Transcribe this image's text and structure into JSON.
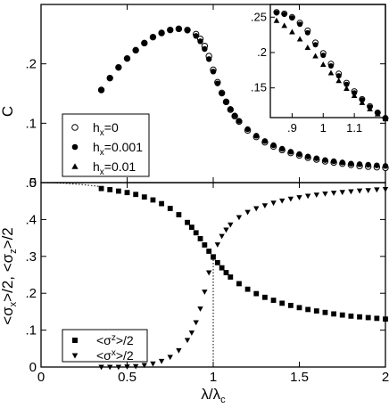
{
  "chart_data": [
    {
      "id": "top",
      "type": "scatter",
      "xlabel": "",
      "ylabel": "C",
      "xlim": [
        0,
        2
      ],
      "ylim": [
        0,
        0.3
      ],
      "xticks": [
        0,
        0.5,
        1,
        1.5,
        2
      ],
      "yticks": [
        0,
        0.1,
        0.2
      ],
      "ytick_labels": [
        "0",
        ".1",
        ".2"
      ],
      "legend": {
        "position": "lower-left",
        "entries": [
          {
            "series": 0,
            "label_main": "h",
            "label_sub": "x",
            "label_tail": "=0"
          },
          {
            "series": 1,
            "label_main": "h",
            "label_sub": "x",
            "label_tail": "=0.001"
          },
          {
            "series": 2,
            "label_main": "h",
            "label_sub": "x",
            "label_tail": "=0.01"
          }
        ]
      },
      "series": [
        {
          "marker": "open-circle",
          "points": [
            [
              0.35,
              0.156
            ],
            [
              0.4,
              0.176
            ],
            [
              0.45,
              0.194
            ],
            [
              0.5,
              0.209
            ],
            [
              0.55,
              0.223
            ],
            [
              0.6,
              0.235
            ],
            [
              0.65,
              0.245
            ],
            [
              0.7,
              0.252
            ],
            [
              0.75,
              0.257
            ],
            [
              0.8,
              0.259
            ],
            [
              0.85,
              0.257
            ],
            [
              0.9,
              0.25
            ],
            [
              0.925,
              0.242
            ],
            [
              0.95,
              0.23
            ],
            [
              0.975,
              0.213
            ],
            [
              1.0,
              0.19
            ],
            [
              1.025,
              0.169
            ],
            [
              1.05,
              0.151
            ],
            [
              1.075,
              0.136
            ],
            [
              1.1,
              0.123
            ],
            [
              1.125,
              0.112
            ],
            [
              1.15,
              0.103
            ],
            [
              1.2,
              0.088
            ],
            [
              1.25,
              0.077
            ],
            [
              1.3,
              0.068
            ],
            [
              1.35,
              0.061
            ],
            [
              1.4,
              0.055
            ],
            [
              1.45,
              0.05
            ],
            [
              1.5,
              0.046
            ],
            [
              1.55,
              0.042
            ],
            [
              1.6,
              0.039
            ],
            [
              1.65,
              0.036
            ],
            [
              1.7,
              0.034
            ],
            [
              1.75,
              0.032
            ],
            [
              1.8,
              0.03
            ],
            [
              1.85,
              0.028
            ],
            [
              1.9,
              0.027
            ],
            [
              1.95,
              0.026
            ],
            [
              2.0,
              0.025
            ]
          ]
        },
        {
          "marker": "filled-circle",
          "points": [
            [
              0.35,
              0.156
            ],
            [
              0.4,
              0.176
            ],
            [
              0.45,
              0.194
            ],
            [
              0.5,
              0.209
            ],
            [
              0.55,
              0.223
            ],
            [
              0.6,
              0.235
            ],
            [
              0.65,
              0.245
            ],
            [
              0.7,
              0.252
            ],
            [
              0.75,
              0.257
            ],
            [
              0.8,
              0.259
            ],
            [
              0.85,
              0.256
            ],
            [
              0.9,
              0.247
            ],
            [
              0.925,
              0.238
            ],
            [
              0.95,
              0.225
            ],
            [
              0.975,
              0.208
            ],
            [
              1.0,
              0.187
            ],
            [
              1.025,
              0.167
            ],
            [
              1.05,
              0.15
            ],
            [
              1.075,
              0.136
            ],
            [
              1.1,
              0.124
            ],
            [
              1.125,
              0.113
            ],
            [
              1.15,
              0.104
            ],
            [
              1.2,
              0.09
            ],
            [
              1.25,
              0.079
            ],
            [
              1.3,
              0.07
            ],
            [
              1.35,
              0.063
            ],
            [
              1.4,
              0.057
            ],
            [
              1.45,
              0.052
            ],
            [
              1.5,
              0.048
            ],
            [
              1.55,
              0.044
            ],
            [
              1.6,
              0.041
            ],
            [
              1.65,
              0.038
            ],
            [
              1.7,
              0.036
            ],
            [
              1.75,
              0.034
            ],
            [
              1.8,
              0.032
            ],
            [
              1.85,
              0.031
            ],
            [
              1.9,
              0.03
            ],
            [
              1.95,
              0.029
            ],
            [
              2.0,
              0.028
            ]
          ]
        },
        {
          "marker": "filled-triangle",
          "points": []
        }
      ],
      "inset": {
        "xlim": [
          0.83,
          1.2
        ],
        "ylim": [
          0.108,
          0.268
        ],
        "xticks": [
          0.9,
          1,
          1.1
        ],
        "xtick_labels": [
          ".9",
          "1",
          "1.1"
        ],
        "yticks": [
          0.15,
          0.2,
          0.25
        ],
        "ytick_labels": [
          ".15",
          ".2",
          ".25"
        ],
        "series": [
          {
            "marker": "open-circle",
            "points": [
              [
                0.85,
                0.257
              ],
              [
                0.875,
                0.255
              ],
              [
                0.9,
                0.25
              ],
              [
                0.925,
                0.242
              ],
              [
                0.95,
                0.231
              ],
              [
                0.975,
                0.214
              ],
              [
                1.0,
                0.199
              ],
              [
                1.025,
                0.184
              ],
              [
                1.05,
                0.17
              ],
              [
                1.075,
                0.157
              ],
              [
                1.1,
                0.145
              ],
              [
                1.125,
                0.134
              ],
              [
                1.15,
                0.124
              ],
              [
                1.175,
                0.115
              ],
              [
                1.2,
                0.107
              ]
            ]
          },
          {
            "marker": "filled-circle",
            "points": [
              [
                0.85,
                0.256
              ],
              [
                0.875,
                0.254
              ],
              [
                0.9,
                0.249
              ],
              [
                0.925,
                0.24
              ],
              [
                0.95,
                0.228
              ],
              [
                0.975,
                0.211
              ],
              [
                1.0,
                0.196
              ],
              [
                1.025,
                0.181
              ],
              [
                1.05,
                0.167
              ],
              [
                1.075,
                0.155
              ],
              [
                1.1,
                0.143
              ],
              [
                1.125,
                0.133
              ],
              [
                1.15,
                0.123
              ],
              [
                1.175,
                0.115
              ],
              [
                1.2,
                0.108
              ]
            ]
          },
          {
            "marker": "filled-triangle",
            "points": [
              [
                0.85,
                0.245
              ],
              [
                0.875,
                0.238
              ],
              [
                0.9,
                0.229
              ],
              [
                0.925,
                0.219
              ],
              [
                0.95,
                0.207
              ],
              [
                0.975,
                0.195
              ],
              [
                1.0,
                0.183
              ],
              [
                1.025,
                0.171
              ],
              [
                1.05,
                0.16
              ],
              [
                1.075,
                0.149
              ],
              [
                1.1,
                0.139
              ],
              [
                1.125,
                0.129
              ],
              [
                1.15,
                0.12
              ],
              [
                1.175,
                0.113
              ],
              [
                1.2,
                0.106
              ]
            ]
          }
        ]
      }
    },
    {
      "id": "bottom",
      "type": "scatter",
      "xlabel_main": "λ/λ",
      "xlabel_sub": "c",
      "ylabel_parts": [
        "<σ",
        "x",
        ">/2, <σ",
        "z",
        ">/2"
      ],
      "xlim": [
        0,
        2
      ],
      "ylim": [
        0,
        0.5
      ],
      "xticks": [
        0,
        0.5,
        1,
        1.5,
        2
      ],
      "xtick_labels": [
        "0",
        "0.5",
        "1",
        "1.5",
        "2"
      ],
      "yticks": [
        0,
        0.1,
        0.2,
        0.3,
        0.4,
        0.5
      ],
      "ytick_labels": [
        "0",
        ".1",
        ".2",
        ".3",
        ".4",
        ".5"
      ],
      "legend": {
        "position": "lower-left",
        "entries": [
          {
            "series": 0,
            "label_pre": "<σ",
            "label_sup": "z",
            "label_post": ">/2"
          },
          {
            "series": 1,
            "label_pre": "<σ",
            "label_sup": "x",
            "label_post": ">/2"
          }
        ]
      },
      "series": [
        {
          "marker": "filled-square",
          "points": [
            [
              0.35,
              0.484
            ],
            [
              0.4,
              0.481
            ],
            [
              0.45,
              0.477
            ],
            [
              0.5,
              0.473
            ],
            [
              0.55,
              0.468
            ],
            [
              0.6,
              0.461
            ],
            [
              0.65,
              0.453
            ],
            [
              0.7,
              0.443
            ],
            [
              0.75,
              0.43
            ],
            [
              0.8,
              0.413
            ],
            [
              0.85,
              0.392
            ],
            [
              0.875,
              0.379
            ],
            [
              0.9,
              0.364
            ],
            [
              0.925,
              0.348
            ],
            [
              0.95,
              0.331
            ],
            [
              0.975,
              0.314
            ],
            [
              1.0,
              0.298
            ],
            [
              1.025,
              0.283
            ],
            [
              1.05,
              0.269
            ],
            [
              1.075,
              0.256
            ],
            [
              1.1,
              0.244
            ],
            [
              1.15,
              0.226
            ],
            [
              1.2,
              0.211
            ],
            [
              1.25,
              0.199
            ],
            [
              1.3,
              0.189
            ],
            [
              1.35,
              0.181
            ],
            [
              1.4,
              0.173
            ],
            [
              1.45,
              0.167
            ],
            [
              1.5,
              0.161
            ],
            [
              1.55,
              0.156
            ],
            [
              1.6,
              0.152
            ],
            [
              1.65,
              0.148
            ],
            [
              1.7,
              0.144
            ],
            [
              1.75,
              0.141
            ],
            [
              1.8,
              0.138
            ],
            [
              1.85,
              0.136
            ],
            [
              1.9,
              0.134
            ],
            [
              1.95,
              0.132
            ],
            [
              2.0,
              0.13
            ]
          ]
        },
        {
          "marker": "filled-triangle-down",
          "points": [
            [
              0.35,
              0.0
            ],
            [
              0.4,
              0.0
            ],
            [
              0.45,
              0.0
            ],
            [
              0.5,
              0.001
            ],
            [
              0.55,
              0.002
            ],
            [
              0.6,
              0.005
            ],
            [
              0.65,
              0.009
            ],
            [
              0.7,
              0.016
            ],
            [
              0.75,
              0.027
            ],
            [
              0.8,
              0.045
            ],
            [
              0.85,
              0.073
            ],
            [
              0.875,
              0.093
            ],
            [
              0.9,
              0.121
            ],
            [
              0.925,
              0.158
            ],
            [
              0.95,
              0.204
            ],
            [
              0.975,
              0.256
            ],
            [
              1.0,
              0.3
            ],
            [
              1.025,
              0.332
            ],
            [
              1.05,
              0.355
            ],
            [
              1.075,
              0.372
            ],
            [
              1.1,
              0.386
            ],
            [
              1.15,
              0.406
            ],
            [
              1.2,
              0.42
            ],
            [
              1.25,
              0.43
            ],
            [
              1.3,
              0.438
            ],
            [
              1.35,
              0.445
            ],
            [
              1.4,
              0.451
            ],
            [
              1.45,
              0.456
            ],
            [
              1.5,
              0.46
            ],
            [
              1.55,
              0.464
            ],
            [
              1.6,
              0.467
            ],
            [
              1.65,
              0.47
            ],
            [
              1.7,
              0.472
            ],
            [
              1.75,
              0.474
            ],
            [
              1.8,
              0.476
            ],
            [
              1.85,
              0.478
            ],
            [
              1.9,
              0.479
            ],
            [
              1.95,
              0.481
            ],
            [
              2.0,
              0.482
            ]
          ]
        }
      ],
      "dotted_curves": [
        {
          "points": [
            [
              0.0,
              0.5
            ],
            [
              0.05,
              0.4997
            ],
            [
              0.1,
              0.499
            ],
            [
              0.15,
              0.4978
            ],
            [
              0.2,
              0.4962
            ],
            [
              0.25,
              0.4942
            ],
            [
              0.3,
              0.4918
            ],
            [
              0.35,
              0.4889
            ]
          ]
        },
        {
          "points": [
            [
              1.0,
              0.0
            ],
            [
              1.0,
              0.3
            ]
          ]
        }
      ]
    }
  ]
}
